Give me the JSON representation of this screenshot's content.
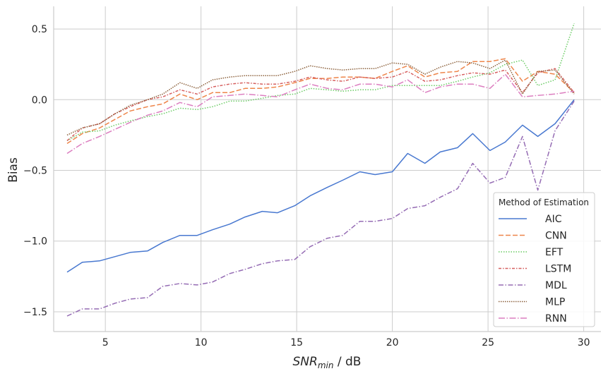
{
  "chart_data": {
    "type": "line",
    "xlabel_main": "SNR",
    "xlabel_sub": "min",
    "xlabel_tail": " / dB",
    "ylabel": "Bias",
    "xlim": [
      2.3,
      30.9
    ],
    "ylim": [
      -1.64,
      0.66
    ],
    "xticks": [
      5,
      10,
      15,
      20,
      25,
      30
    ],
    "yticks": [
      -1.5,
      -1.0,
      -0.5,
      0.0,
      0.5
    ],
    "ytick_labels": [
      "−1.5",
      "−1.0",
      "−0.5",
      "0.0",
      "0.5"
    ],
    "grid": true,
    "legend_title": "Method of Estimation",
    "legend_position": "lower-right",
    "x": [
      3.0,
      3.8,
      4.7,
      5.5,
      6.3,
      7.2,
      8.0,
      8.9,
      9.8,
      10.6,
      11.5,
      12.3,
      13.2,
      14.0,
      14.9,
      15.7,
      16.6,
      17.4,
      18.3,
      19.1,
      20.0,
      20.8,
      21.7,
      22.5,
      23.4,
      24.2,
      25.1,
      25.9,
      26.8,
      27.6,
      28.5,
      29.5
    ],
    "series": [
      {
        "name": "AIC",
        "color": "#4878d0",
        "dash": "",
        "values": [
          -1.22,
          -1.15,
          -1.14,
          -1.11,
          -1.08,
          -1.07,
          -1.01,
          -0.96,
          -0.96,
          -0.92,
          -0.88,
          -0.83,
          -0.79,
          -0.8,
          -0.75,
          -0.68,
          -0.62,
          -0.57,
          -0.51,
          -0.53,
          -0.51,
          -0.38,
          -0.45,
          -0.37,
          -0.34,
          -0.24,
          -0.36,
          -0.3,
          -0.18,
          -0.26,
          -0.17,
          0.0
        ]
      },
      {
        "name": "CNN",
        "color": "#ee854a",
        "dash": "7,3",
        "values": [
          -0.31,
          -0.24,
          -0.2,
          -0.14,
          -0.08,
          -0.05,
          -0.03,
          0.04,
          0.0,
          0.05,
          0.05,
          0.08,
          0.08,
          0.09,
          0.12,
          0.15,
          0.15,
          0.16,
          0.16,
          0.15,
          0.2,
          0.24,
          0.16,
          0.19,
          0.2,
          0.27,
          0.27,
          0.29,
          0.13,
          0.2,
          0.18,
          0.05
        ]
      },
      {
        "name": "EFT",
        "color": "#6acc64",
        "dash": "1.5,2",
        "values": [
          -0.29,
          -0.23,
          -0.22,
          -0.18,
          -0.15,
          -0.12,
          -0.1,
          -0.06,
          -0.07,
          -0.05,
          -0.01,
          -0.01,
          0.01,
          0.03,
          0.04,
          0.08,
          0.07,
          0.06,
          0.07,
          0.07,
          0.1,
          0.1,
          0.1,
          0.1,
          0.13,
          0.16,
          0.19,
          0.25,
          0.28,
          0.1,
          0.14,
          0.54
        ]
      },
      {
        "name": "LSTM",
        "color": "#d65f5f",
        "dash": "4,2,1.5,2",
        "values": [
          -0.29,
          -0.2,
          -0.17,
          -0.1,
          -0.05,
          0.0,
          0.02,
          0.07,
          0.04,
          0.09,
          0.11,
          0.12,
          0.11,
          0.11,
          0.13,
          0.16,
          0.14,
          0.13,
          0.16,
          0.15,
          0.16,
          0.2,
          0.13,
          0.14,
          0.17,
          0.19,
          0.18,
          0.21,
          0.05,
          0.19,
          0.22,
          0.05
        ]
      },
      {
        "name": "MDL",
        "color": "#956cb4",
        "dash": "7,2.5,1.5,2.5",
        "values": [
          -1.53,
          -1.48,
          -1.48,
          -1.44,
          -1.41,
          -1.4,
          -1.32,
          -1.3,
          -1.31,
          -1.29,
          -1.23,
          -1.2,
          -1.16,
          -1.14,
          -1.13,
          -1.04,
          -0.98,
          -0.96,
          -0.86,
          -0.86,
          -0.84,
          -0.77,
          -0.75,
          -0.69,
          -0.63,
          -0.45,
          -0.59,
          -0.55,
          -0.26,
          -0.64,
          -0.22,
          -0.01
        ]
      },
      {
        "name": "MLP",
        "color": "#8c613c",
        "dash": "1.5,1.5",
        "values": [
          -0.25,
          -0.2,
          -0.17,
          -0.1,
          -0.04,
          0.0,
          0.04,
          0.12,
          0.08,
          0.14,
          0.16,
          0.17,
          0.17,
          0.17,
          0.2,
          0.24,
          0.22,
          0.21,
          0.22,
          0.22,
          0.26,
          0.25,
          0.18,
          0.23,
          0.27,
          0.26,
          0.22,
          0.28,
          0.04,
          0.2,
          0.21,
          0.04
        ]
      },
      {
        "name": "RNN",
        "color": "#dc7ec0",
        "dash": "9,2.5,1.5,2.5",
        "values": [
          -0.38,
          -0.31,
          -0.26,
          -0.21,
          -0.16,
          -0.11,
          -0.08,
          -0.02,
          -0.05,
          0.02,
          0.03,
          0.04,
          0.03,
          0.02,
          0.07,
          0.11,
          0.08,
          0.07,
          0.11,
          0.11,
          0.09,
          0.14,
          0.05,
          0.09,
          0.11,
          0.11,
          0.08,
          0.18,
          0.02,
          0.03,
          0.04,
          0.06
        ]
      }
    ]
  }
}
